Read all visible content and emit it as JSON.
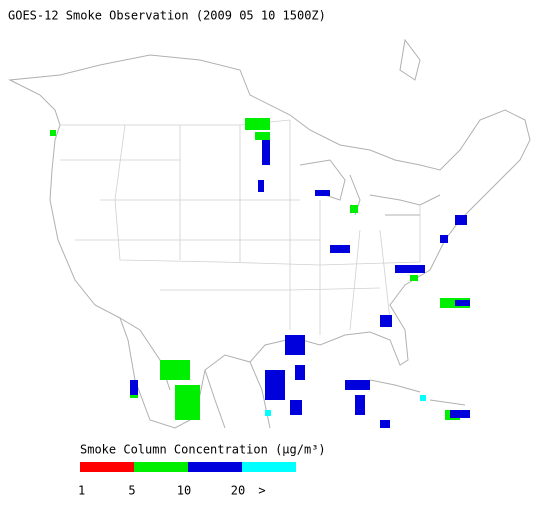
{
  "header": {
    "title": "GOES-12 Smoke Observation (2009 05 10  1500Z)"
  },
  "legend": {
    "title": "Smoke Column Concentration (μg/m³)",
    "labels": [
      "1",
      "5",
      "10",
      "20",
      ">"
    ],
    "colors": [
      "#ff0000",
      "#00ee00",
      "#0000dd",
      "#00ffff"
    ]
  }
}
